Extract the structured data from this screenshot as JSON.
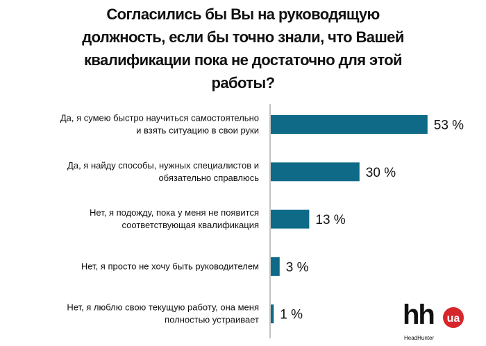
{
  "chart_data": {
    "type": "bar",
    "orientation": "horizontal",
    "title_lines": [
      "Согласились бы Вы на руководящую",
      "должность, если бы точно знали, что Вашей",
      "квалификации пока не достаточно для этой",
      "работы?"
    ],
    "categories": [
      [
        "Да, я сумею быстро научиться самостоятельно",
        "и взять ситуацию в свои руки"
      ],
      [
        "Да, я найду способы, нужных специалистов и",
        "обязательно справлюсь"
      ],
      [
        "Нет, я подожду, пока у меня не появится",
        "соответствующая квалификация"
      ],
      [
        "Нет, я просто не хочу быть руководителем"
      ],
      [
        "Нет, я люблю свою текущую работу, она меня",
        "полностью устраивает"
      ]
    ],
    "values": [
      53,
      30,
      13,
      3,
      1
    ],
    "value_labels": [
      "53 %",
      "30 %",
      "13 %",
      "3 %",
      "1 %"
    ],
    "xlim": [
      0,
      70
    ],
    "grid": false,
    "colors": {
      "bar": "#0e6a87",
      "axis": "#b0b0b0",
      "logo_red": "#d7262b"
    }
  },
  "logo": {
    "text": "hh",
    "badge": "ua",
    "subtitle": "HeadHunter"
  }
}
